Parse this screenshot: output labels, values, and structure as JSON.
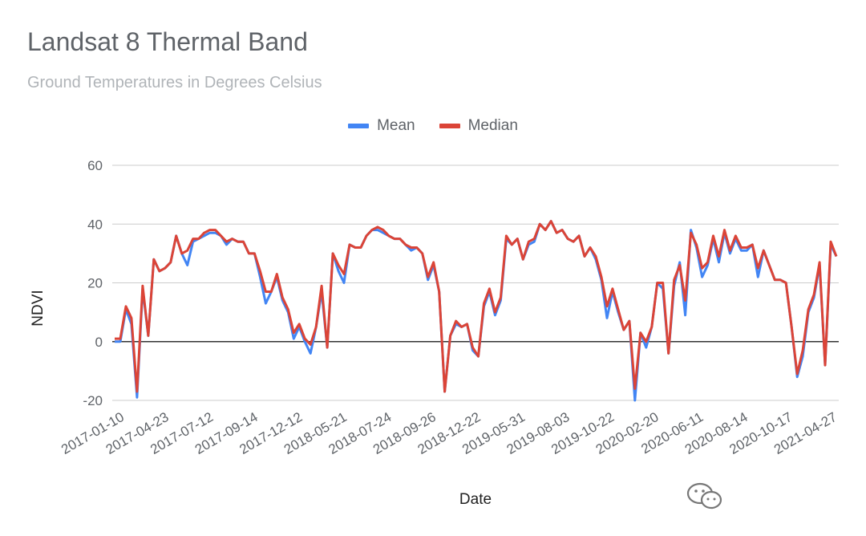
{
  "chart_data": {
    "type": "line",
    "title": "Landsat 8 Thermal Band",
    "subtitle": "Ground Temperatures in Degrees Celsius",
    "xlabel": "Date",
    "ylabel": "NDVI",
    "ylim": [
      -20,
      60
    ],
    "yticks": [
      -20,
      0,
      20,
      40,
      60
    ],
    "grid": true,
    "legend_position": "top",
    "x_tick_labels": [
      "2017-01-10",
      "2017-04-23",
      "2017-07-12",
      "2017-09-14",
      "2017-12-12",
      "2018-05-21",
      "2018-07-24",
      "2018-09-26",
      "2018-12-22",
      "2019-05-31",
      "2019-08-03",
      "2019-10-22",
      "2020-02-20",
      "2020-06-11",
      "2020-08-14",
      "2020-10-17",
      "2021-04-27"
    ],
    "series": [
      {
        "name": "Mean",
        "color": "#4285f4",
        "values": [
          0,
          0,
          11,
          6,
          -19,
          18,
          2,
          28,
          24,
          25,
          27,
          36,
          30,
          26,
          34,
          35,
          36,
          37,
          37,
          36,
          33,
          35,
          34,
          34,
          30,
          30,
          22,
          13,
          17,
          22,
          14,
          10,
          1,
          5,
          0,
          -4,
          5,
          17,
          -2,
          30,
          24,
          20,
          33,
          32,
          32,
          36,
          38,
          38,
          37,
          36,
          35,
          35,
          33,
          31,
          32,
          30,
          21,
          26,
          17,
          -17,
          2,
          6,
          5,
          6,
          -3,
          -5,
          12,
          17,
          9,
          14,
          35,
          33,
          35,
          28,
          33,
          34,
          40,
          38,
          41,
          37,
          38,
          35,
          34,
          36,
          29,
          32,
          28,
          21,
          8,
          17,
          10,
          4,
          7,
          -20,
          3,
          -2,
          5,
          20,
          18,
          -4,
          19,
          27,
          9,
          38,
          32,
          22,
          26,
          35,
          27,
          37,
          30,
          35,
          31,
          31,
          33,
          22,
          31,
          26,
          21,
          21,
          20,
          5,
          -12,
          -5,
          10,
          15,
          26,
          -8,
          33,
          29
        ]
      },
      {
        "name": "Median",
        "color": "#db4437",
        "values": [
          1,
          1,
          12,
          8,
          -17,
          19,
          2,
          28,
          24,
          25,
          27,
          36,
          30,
          31,
          35,
          35,
          37,
          38,
          38,
          36,
          34,
          35,
          34,
          34,
          30,
          30,
          24,
          17,
          17,
          23,
          15,
          11,
          3,
          6,
          1,
          -1,
          5,
          19,
          -2,
          30,
          26,
          23,
          33,
          32,
          32,
          36,
          38,
          39,
          38,
          36,
          35,
          35,
          33,
          32,
          32,
          30,
          22,
          27,
          17,
          -17,
          2,
          7,
          5,
          6,
          -2,
          -5,
          13,
          18,
          10,
          15,
          36,
          33,
          35,
          28,
          34,
          35,
          40,
          38,
          41,
          37,
          38,
          35,
          34,
          36,
          29,
          32,
          29,
          22,
          12,
          18,
          11,
          4,
          7,
          -16,
          3,
          0,
          5,
          20,
          20,
          -4,
          21,
          26,
          14,
          37,
          33,
          25,
          27,
          36,
          29,
          38,
          31,
          36,
          32,
          32,
          33,
          25,
          31,
          26,
          21,
          21,
          20,
          5,
          -11,
          -3,
          11,
          16,
          27,
          -8,
          34,
          29
        ]
      }
    ]
  }
}
